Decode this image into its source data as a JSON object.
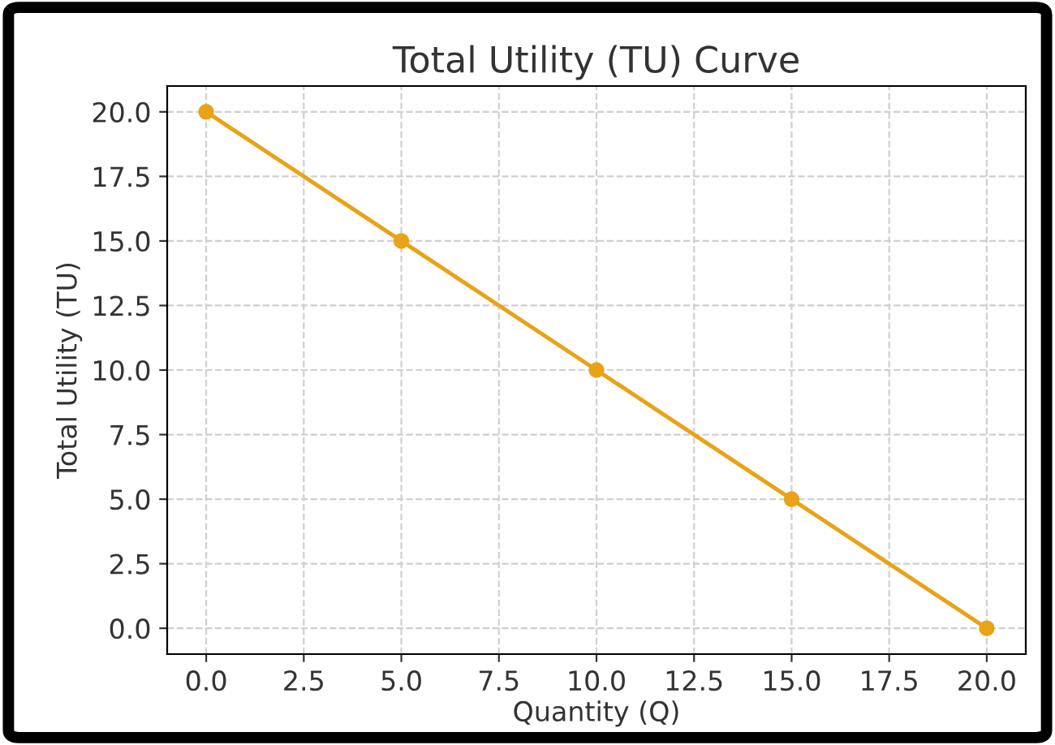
{
  "chart_data": {
    "type": "line",
    "title": "Total Utility (TU) Curve",
    "xlabel": "Quantity (Q)",
    "ylabel": "Total Utility (TU)",
    "x": [
      0,
      5,
      10,
      15,
      20
    ],
    "series": [
      {
        "color": "#e8a317",
        "values": [
          20,
          15,
          10,
          5,
          0
        ]
      }
    ],
    "xlim": [
      -1,
      21
    ],
    "ylim": [
      -1,
      21
    ],
    "xticks": [
      {
        "value": 0,
        "label": "0.0"
      },
      {
        "value": 2.5,
        "label": "2.5"
      },
      {
        "value": 5,
        "label": "5.0"
      },
      {
        "value": 7.5,
        "label": "7.5"
      },
      {
        "value": 10,
        "label": "10.0"
      },
      {
        "value": 12.5,
        "label": "12.5"
      },
      {
        "value": 15,
        "label": "15.0"
      },
      {
        "value": 17.5,
        "label": "17.5"
      },
      {
        "value": 20,
        "label": "20.0"
      }
    ],
    "yticks": [
      {
        "value": 0,
        "label": "0.0"
      },
      {
        "value": 2.5,
        "label": "2.5"
      },
      {
        "value": 5,
        "label": "5.0"
      },
      {
        "value": 7.5,
        "label": "7.5"
      },
      {
        "value": 10,
        "label": "10.0"
      },
      {
        "value": 12.5,
        "label": "12.5"
      },
      {
        "value": 15,
        "label": "15.0"
      },
      {
        "value": 17.5,
        "label": "17.5"
      },
      {
        "value": 20,
        "label": "20.0"
      }
    ],
    "grid": true,
    "marker": "circle",
    "line_style": "solid"
  }
}
